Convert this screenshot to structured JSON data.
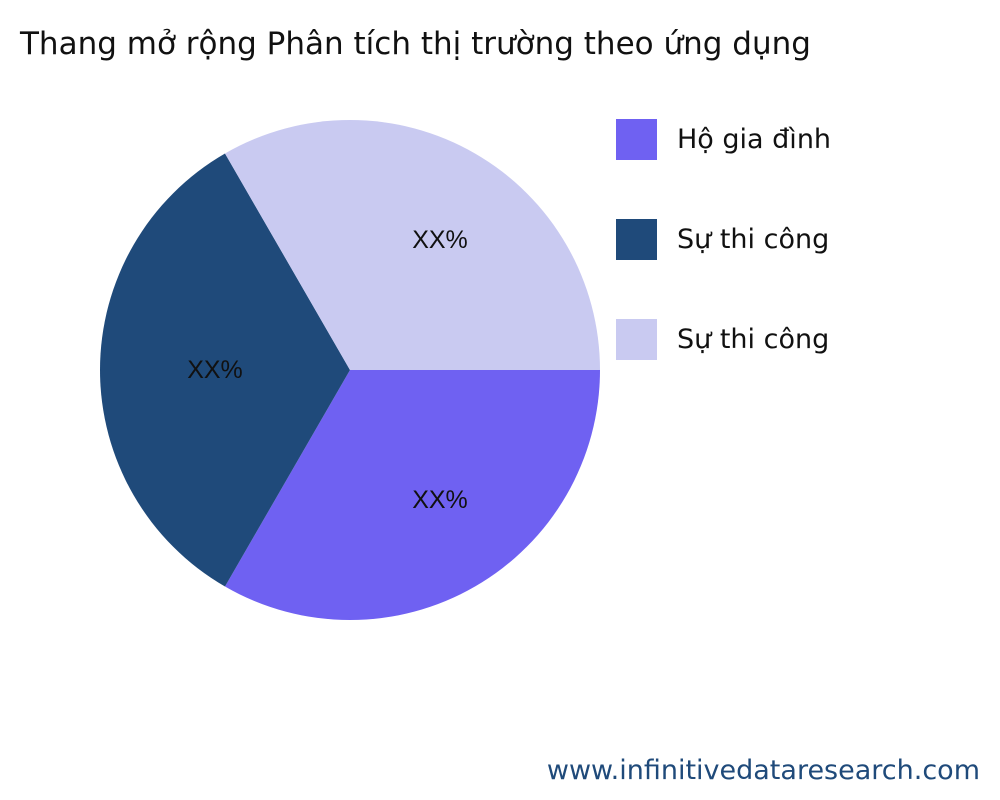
{
  "chart_data": {
    "type": "pie",
    "title": "Thang mở rộng Phân tích thị trường theo ứng dụng",
    "slices": [
      {
        "label": "Hộ gia đình",
        "value": 33.33,
        "text": "XX%",
        "color": "#6f61f2"
      },
      {
        "label": "Sự thi công",
        "value": 33.33,
        "text": "XX%",
        "color": "#1f4a7a"
      },
      {
        "label": "Sự thi công",
        "value": 33.33,
        "text": "XX%",
        "color": "#c9caf1"
      }
    ],
    "legend_position": "right"
  },
  "footer": "www.infinitivedataresearch.com"
}
